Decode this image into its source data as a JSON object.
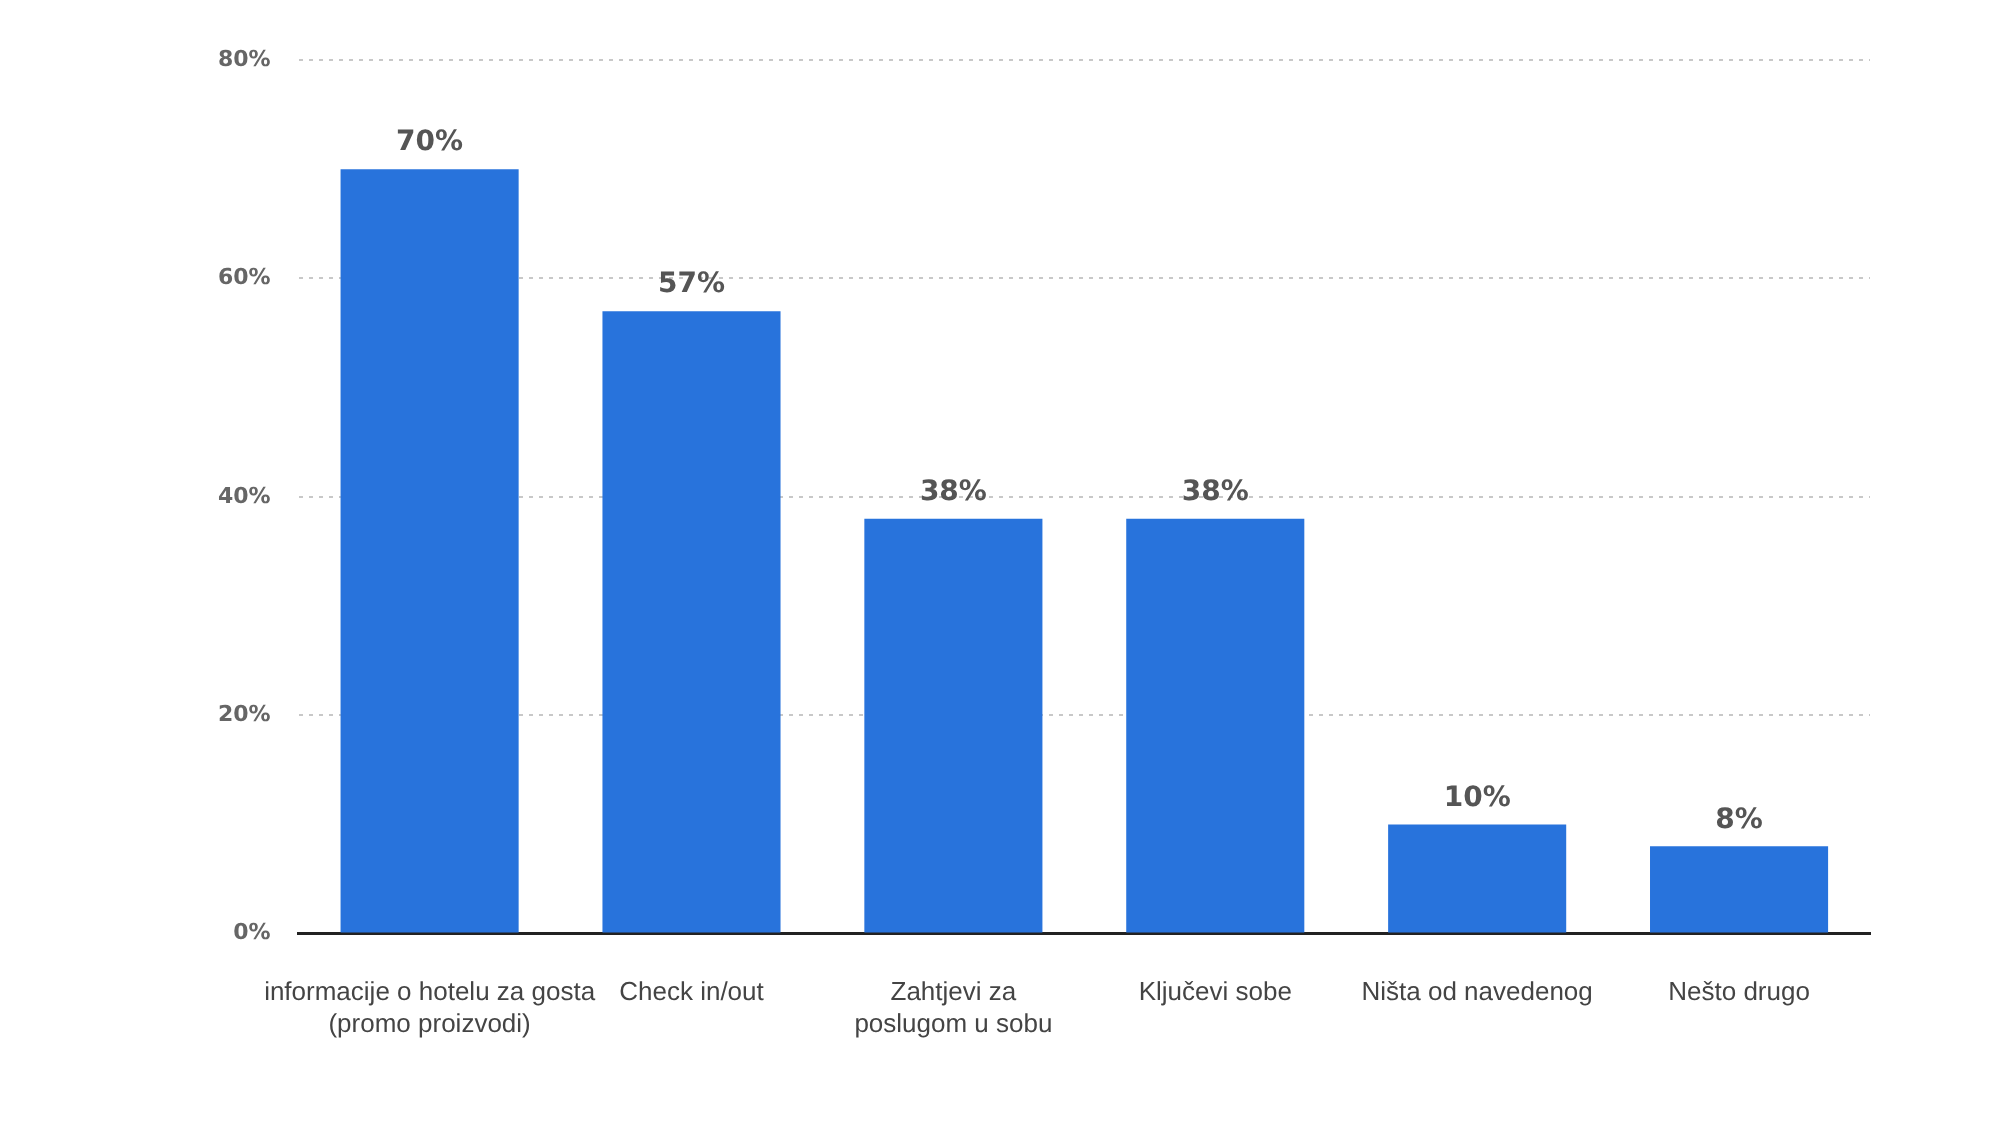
{
  "chart_data": {
    "type": "bar",
    "categories": [
      "informacije o hotelu za gosta\n(promo proizvodi)",
      "Check in/out",
      "Zahtjevi za\nposlugom u sobu",
      "Ključevi sobe",
      "Ništa od navedenog",
      "Nešto drugo"
    ],
    "values": [
      70,
      57,
      38,
      38,
      10,
      8
    ],
    "color": "#2873dc",
    "value_labels": [
      "70%",
      "57%",
      "38%",
      "38%",
      "10%",
      "8%"
    ],
    "ylim": [
      0,
      80
    ],
    "yticks": [
      {
        "value": 0,
        "label": "0%"
      },
      {
        "value": 20,
        "label": "20%"
      },
      {
        "value": 40,
        "label": "40%"
      },
      {
        "value": 60,
        "label": "60%"
      },
      {
        "value": 80,
        "label": "80%"
      }
    ],
    "grid": "y"
  }
}
